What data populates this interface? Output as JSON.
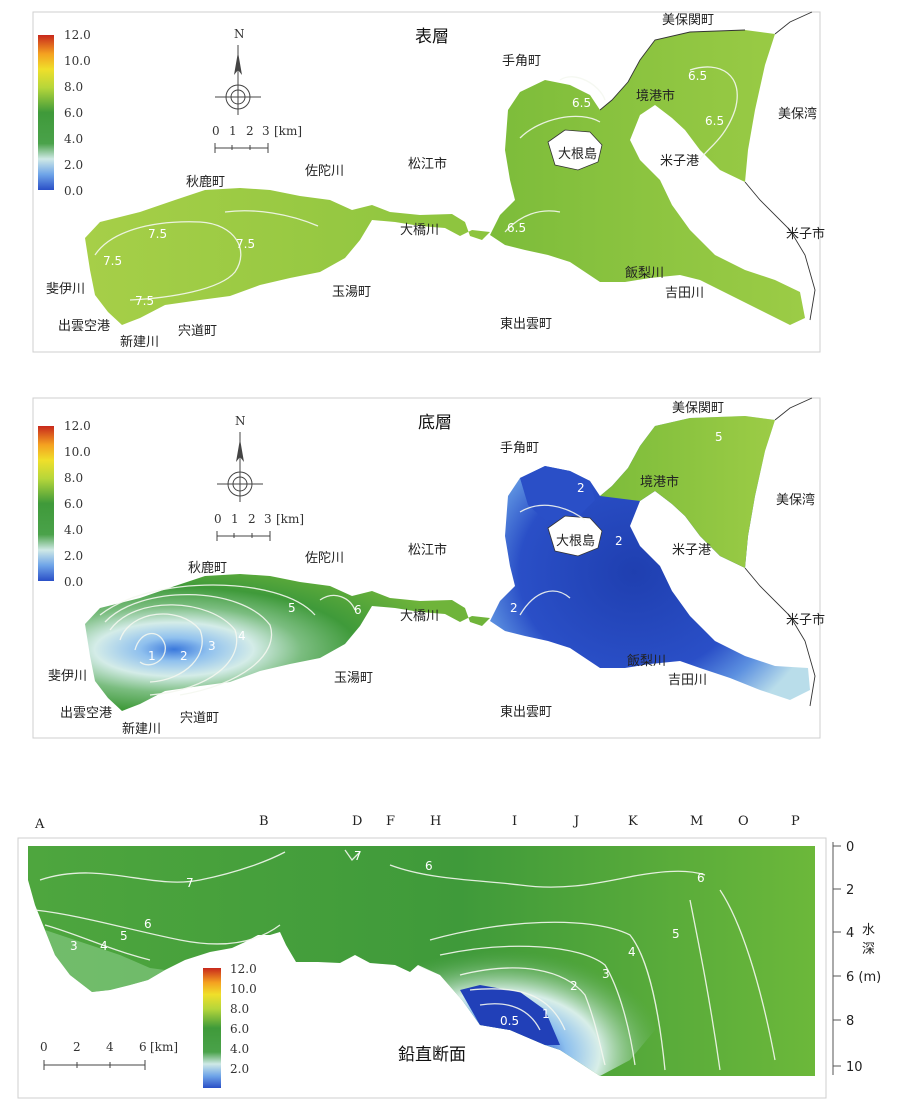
{
  "legend": {
    "ticks": [
      "12.0",
      "10.0",
      "8.0",
      "6.0",
      "4.0",
      "2.0",
      "0.0"
    ]
  },
  "map_scale": {
    "north": "N",
    "ticks": [
      "0",
      "1",
      "2",
      "3",
      "[km]"
    ]
  },
  "surface_map": {
    "title": "表層",
    "places": {
      "mihonoseki": "美保関町",
      "tesumi": "手角町",
      "sakaiminato": "境港市",
      "mihowan": "美保湾",
      "daikonshima": "大根島",
      "yonagoko": "米子港",
      "yonagoshi": "米子市",
      "matsue": "松江市",
      "ohashigawa": "大橋川",
      "iinashigawa": "飯梨川",
      "yoshidagawa": "吉田川",
      "higashiizumo": "東出雲町",
      "akashika": "秋鹿町",
      "sadagawa": "佐陀川",
      "hiikawa": "斐伊川",
      "izumo_airport": "出雲空港",
      "shindegawa": "新建川",
      "shinjicho": "宍道町",
      "tamayu": "玉湯町"
    },
    "contours": [
      "6.5",
      "6.5",
      "6.5",
      "6.5",
      "7.5",
      "7.5",
      "7.5",
      "7.5"
    ]
  },
  "bottom_map": {
    "title": "底層",
    "places": {
      "mihonoseki": "美保関町",
      "tesumi": "手角町",
      "sakaiminato": "境港市",
      "mihowan": "美保湾",
      "daikonshima": "大根島",
      "yonagoko": "米子港",
      "yonagoshi": "米子市",
      "matsue": "松江市",
      "ohashigawa": "大橋川",
      "iinashigawa": "飯梨川",
      "yoshidagawa": "吉田川",
      "higashiizumo": "東出雲町",
      "akashika": "秋鹿町",
      "sadagawa": "佐陀川",
      "hiikawa": "斐伊川",
      "izumo_airport": "出雲空港",
      "shindegawa": "新建川",
      "shinjicho": "宍道町",
      "tamayu": "玉湯町"
    },
    "contours": [
      "1",
      "2",
      "3",
      "4",
      "5",
      "6",
      "5",
      "2",
      "2",
      "2"
    ]
  },
  "section": {
    "title": "鉛直断面",
    "stations": [
      "A",
      "B",
      "D",
      "F",
      "H",
      "I",
      "J",
      "K",
      "M",
      "O",
      "P"
    ],
    "depth_ticks": [
      "0",
      "2",
      "4",
      "6 (m)",
      "8",
      "10"
    ],
    "depth_label_1": "水",
    "depth_label_2": "深",
    "scale_ticks": [
      "0",
      "2",
      "4",
      "6",
      "[km]"
    ],
    "contours": [
      "7",
      "7",
      "6",
      "6",
      "6",
      "5",
      "5",
      "4",
      "4",
      "3",
      "3",
      "2",
      "1",
      "0.5"
    ]
  }
}
